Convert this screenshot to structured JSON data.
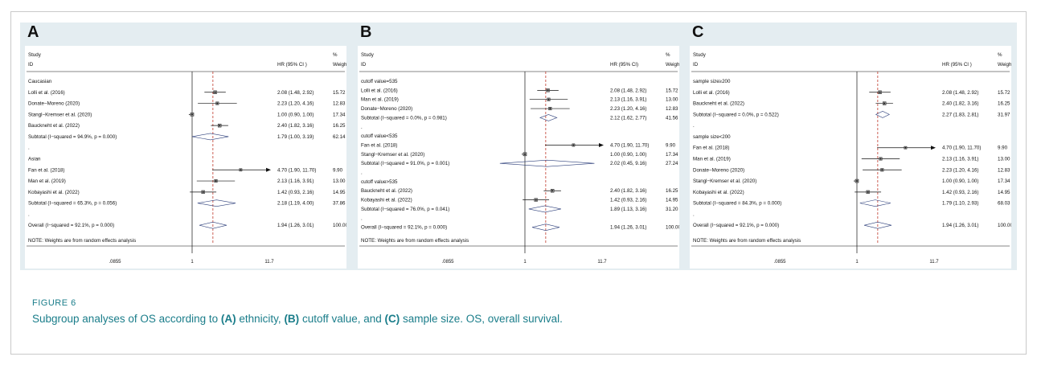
{
  "figure": {
    "label": "FIGURE 6",
    "caption_parts": [
      "Subgroup analyses of OS according to ",
      "(A)",
      " ethnicity, ",
      "(B)",
      " cutoff value, and ",
      "(C)",
      " sample size. OS, overall survival."
    ]
  },
  "colors": {
    "background": "#e4edf1",
    "caption": "#1a7d8a",
    "reference_line": "#c0392b",
    "ink": "#111111"
  },
  "chart_data": [
    {
      "panel": "A",
      "type": "forest",
      "x_scale": "log",
      "xlim": [
        0.0855,
        11.7
      ],
      "x_ticks": [
        ".0855",
        "1",
        "11.7"
      ],
      "overall_line": 1.94,
      "headers": {
        "study_line1": "Study",
        "study_line2": "ID",
        "effect": "HR (95% CI )",
        "weight_line1": "%",
        "weight_line2": "Weight"
      },
      "note": "NOTE: Weights are from random effects analysis",
      "rows": [
        {
          "kind": "group",
          "label": "Caucasian"
        },
        {
          "kind": "study",
          "label": "Lolli et al. (2016)",
          "hr": 2.08,
          "lo": 1.48,
          "hi": 2.92,
          "ci_text": "2.08 (1.48, 2.92)",
          "weight": "15.72"
        },
        {
          "kind": "study",
          "label": "Donate−Moreno (2020)",
          "hr": 2.23,
          "lo": 1.2,
          "hi": 4.16,
          "ci_text": "2.23 (1.20, 4.16)",
          "weight": "12.83"
        },
        {
          "kind": "study",
          "label": "Stangl−Kremser et al. (2020)",
          "hr": 1.0,
          "lo": 0.9,
          "hi": 1.0,
          "ci_text": "1.00 (0.90, 1.00)",
          "weight": "17.34"
        },
        {
          "kind": "study",
          "label": "Bauckneht et al. (2022)",
          "hr": 2.4,
          "lo": 1.82,
          "hi": 3.16,
          "ci_text": "2.40 (1.82, 3.16)",
          "weight": "16.25"
        },
        {
          "kind": "subtotal",
          "label": "Subtotal  (I−squared = 94.9%, p = 0.000)",
          "hr": 1.79,
          "lo": 1.0,
          "hi": 3.19,
          "ci_text": "1.79 (1.00, 3.19)",
          "weight": "62.14"
        },
        {
          "kind": "dot",
          "label": "."
        },
        {
          "kind": "group",
          "label": "Asian"
        },
        {
          "kind": "study",
          "label": "Fan et al. (2018)",
          "hr": 4.7,
          "lo": 1.9,
          "hi": 11.7,
          "ci_text": "4.70 (1.90, 11.70)",
          "weight": "9.90",
          "arrow": true
        },
        {
          "kind": "study",
          "label": "Man et al. (2019)",
          "hr": 2.13,
          "lo": 1.16,
          "hi": 3.91,
          "ci_text": "2.13 (1.16, 3.91)",
          "weight": "13.00"
        },
        {
          "kind": "study",
          "label": "Kobayashi et al. (2022)",
          "hr": 1.42,
          "lo": 0.93,
          "hi": 2.16,
          "ci_text": "1.42 (0.93, 2.16)",
          "weight": "14.95"
        },
        {
          "kind": "subtotal",
          "label": "Subtotal  (I−squared = 65.3%, p = 0.056)",
          "hr": 2.18,
          "lo": 1.19,
          "hi": 4.0,
          "ci_text": "2.18 (1.19, 4.00)",
          "weight": "37.86"
        },
        {
          "kind": "dot",
          "label": "."
        },
        {
          "kind": "overall",
          "label": "Overall  (I−squared = 92.1%, p = 0.000)",
          "hr": 1.94,
          "lo": 1.26,
          "hi": 3.01,
          "ci_text": "1.94 (1.26, 3.01)",
          "weight": "100.00"
        }
      ]
    },
    {
      "panel": "B",
      "type": "forest",
      "x_scale": "log",
      "xlim": [
        0.0855,
        11.7
      ],
      "x_ticks": [
        ".0855",
        "1",
        "11.7"
      ],
      "overall_line": 1.94,
      "headers": {
        "study_line1": "Study",
        "study_line2": "ID",
        "effect": "HR (95% CI)",
        "weight_line1": "%",
        "weight_line2": "Weight"
      },
      "note": "NOTE: Weights are from random effects analysis",
      "rows": [
        {
          "kind": "group",
          "label": "cutoff value=535"
        },
        {
          "kind": "study",
          "label": "Lolli et al. (2016)",
          "hr": 2.08,
          "lo": 1.48,
          "hi": 2.92,
          "ci_text": "2.08 (1.48, 2.92)",
          "weight": "15.72"
        },
        {
          "kind": "study",
          "label": "Man et al. (2019)",
          "hr": 2.13,
          "lo": 1.16,
          "hi": 3.91,
          "ci_text": "2.13 (1.16, 3.91)",
          "weight": "13.00"
        },
        {
          "kind": "study",
          "label": "Donate−Moreno (2020)",
          "hr": 2.23,
          "lo": 1.2,
          "hi": 4.16,
          "ci_text": "2.23 (1.20, 4.16)",
          "weight": "12.83"
        },
        {
          "kind": "subtotal",
          "label": "Subtotal  (I−squared = 0.0%, p = 0.981)",
          "hr": 2.12,
          "lo": 1.62,
          "hi": 2.77,
          "ci_text": "2.12 (1.62, 2.77)",
          "weight": "41.56"
        },
        {
          "kind": "dot",
          "label": "."
        },
        {
          "kind": "group",
          "label": "cutoff value<535"
        },
        {
          "kind": "study",
          "label": "Fan et al. (2018)",
          "hr": 4.7,
          "lo": 1.9,
          "hi": 11.7,
          "ci_text": "4.70 (1.90, 11.70)",
          "weight": "9.90",
          "arrow": true
        },
        {
          "kind": "study",
          "label": "Stangl−Kremser et al. (2020)",
          "hr": 1.0,
          "lo": 0.9,
          "hi": 1.0,
          "ci_text": "1.00 (0.90, 1.00)",
          "weight": "17.34"
        },
        {
          "kind": "subtotal",
          "label": "Subtotal  (I−squared = 91.0%, p = 0.001)",
          "hr": 2.02,
          "lo": 0.45,
          "hi": 9.16,
          "ci_text": "2.02 (0.45, 9.16)",
          "weight": "27.24"
        },
        {
          "kind": "dot",
          "label": "."
        },
        {
          "kind": "group",
          "label": "cutoff value>535"
        },
        {
          "kind": "study",
          "label": "Bauckneht et al. (2022)",
          "hr": 2.4,
          "lo": 1.82,
          "hi": 3.16,
          "ci_text": "2.40 (1.82, 3.16)",
          "weight": "16.25"
        },
        {
          "kind": "study",
          "label": "Kobayashi et al. (2022)",
          "hr": 1.42,
          "lo": 0.93,
          "hi": 2.16,
          "ci_text": "1.42 (0.93, 2.16)",
          "weight": "14.95"
        },
        {
          "kind": "subtotal",
          "label": "Subtotal  (I−squared = 76.0%, p = 0.041)",
          "hr": 1.89,
          "lo": 1.13,
          "hi": 3.16,
          "ci_text": "1.89 (1.13, 3.16)",
          "weight": "31.20"
        },
        {
          "kind": "dot",
          "label": "."
        },
        {
          "kind": "overall",
          "label": "Overall  (I−squared = 92.1%, p = 0.000)",
          "hr": 1.94,
          "lo": 1.26,
          "hi": 3.01,
          "ci_text": "1.94 (1.26, 3.01)",
          "weight": "100.00"
        }
      ]
    },
    {
      "panel": "C",
      "type": "forest",
      "x_scale": "log",
      "xlim": [
        0.0855,
        11.7
      ],
      "x_ticks": [
        ".0855",
        "1",
        "11.7"
      ],
      "overall_line": 1.94,
      "headers": {
        "study_line1": "Study",
        "study_line2": "ID",
        "effect": "HR (95% CI )",
        "weight_line1": "%",
        "weight_line2": "Weight"
      },
      "note": "NOTE: Weights are from random effects analysis",
      "rows": [
        {
          "kind": "group",
          "label": "sample size≥200"
        },
        {
          "kind": "study",
          "label": "Lolli et al. (2016)",
          "hr": 2.08,
          "lo": 1.48,
          "hi": 2.92,
          "ci_text": "2.08 (1.48, 2.92)",
          "weight": "15.72"
        },
        {
          "kind": "study",
          "label": "Bauckneht et al. (2022)",
          "hr": 2.4,
          "lo": 1.82,
          "hi": 3.16,
          "ci_text": "2.40 (1.82, 3.16)",
          "weight": "16.25"
        },
        {
          "kind": "subtotal",
          "label": "Subtotal  (I−squared = 0.0%, p = 0.522)",
          "hr": 2.27,
          "lo": 1.83,
          "hi": 2.81,
          "ci_text": "2.27 (1.83, 2.81)",
          "weight": "31.97"
        },
        {
          "kind": "dot",
          "label": "."
        },
        {
          "kind": "group",
          "label": "sample size<200"
        },
        {
          "kind": "study",
          "label": "Fan et al. (2018)",
          "hr": 4.7,
          "lo": 1.9,
          "hi": 11.7,
          "ci_text": "4.70 (1.90, 11.70)",
          "weight": "9.90",
          "arrow": true
        },
        {
          "kind": "study",
          "label": "Man et al. (2019)",
          "hr": 2.13,
          "lo": 1.16,
          "hi": 3.91,
          "ci_text": "2.13 (1.16, 3.91)",
          "weight": "13.00"
        },
        {
          "kind": "study",
          "label": "Donate−Moreno (2020)",
          "hr": 2.23,
          "lo": 1.2,
          "hi": 4.16,
          "ci_text": "2.23 (1.20, 4.16)",
          "weight": "12.83"
        },
        {
          "kind": "study",
          "label": "Stangl−Kremser et al. (2020)",
          "hr": 1.0,
          "lo": 0.9,
          "hi": 1.0,
          "ci_text": "1.00 (0.90, 1.00)",
          "weight": "17.34"
        },
        {
          "kind": "study",
          "label": "Kobayashi et al. (2022)",
          "hr": 1.42,
          "lo": 0.93,
          "hi": 2.16,
          "ci_text": "1.42 (0.93, 2.16)",
          "weight": "14.95"
        },
        {
          "kind": "subtotal",
          "label": "Subtotal  (I−squared = 84.3%, p = 0.000)",
          "hr": 1.79,
          "lo": 1.1,
          "hi": 2.93,
          "ci_text": "1.79 (1.10, 2.93)",
          "weight": "68.03"
        },
        {
          "kind": "dot",
          "label": "."
        },
        {
          "kind": "overall",
          "label": "Overall  (I−squared = 92.1%, p = 0.000)",
          "hr": 1.94,
          "lo": 1.26,
          "hi": 3.01,
          "ci_text": "1.94 (1.26, 3.01)",
          "weight": "100.00"
        }
      ]
    }
  ]
}
